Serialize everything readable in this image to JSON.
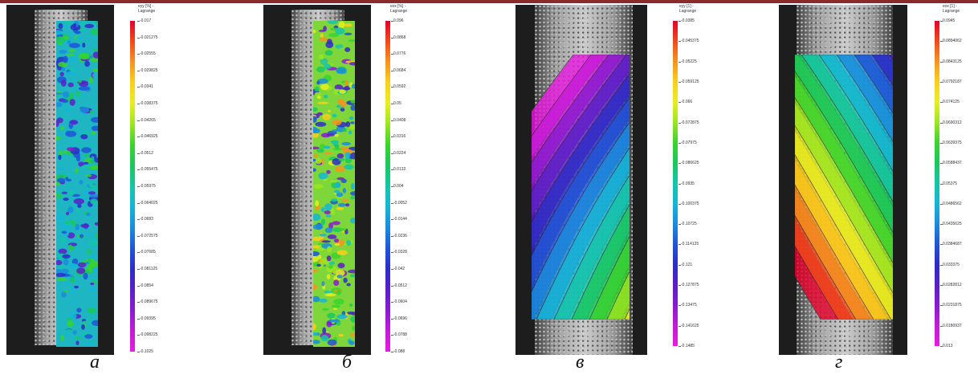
{
  "panels": [
    {
      "id": "a",
      "caption": "а",
      "cb_title": "eyy [%] -\nLagrange",
      "labels": [
        "-0.017",
        "-0.021275",
        "-0.02555",
        "-0.029825",
        "-0.0341",
        "-0.038375",
        "-0.04265",
        "-0.046925",
        "-0.0512",
        "-0.055475",
        "-0.05975",
        "-0.064025",
        "-0.0683",
        "-0.072575",
        "-0.07685",
        "-0.081125",
        "-0.0854",
        "-0.089675",
        "-0.09395",
        "-0.098225",
        "-0.1025"
      ],
      "type": "speckle"
    },
    {
      "id": "b",
      "caption": "б",
      "cb_title": "exx [%] -\nLagrange",
      "labels": [
        "0.096",
        "0.0868",
        "0.0776",
        "0.0684",
        "0.0592",
        "0.05",
        "0.0408",
        "0.0316",
        "0.0224",
        "0.0132",
        "0.004",
        "-0.0052",
        "-0.0144",
        "-0.0236",
        "-0.0328",
        "-0.042",
        "-0.0512",
        "-0.0604",
        "-0.0696",
        "-0.0788",
        "-0.088"
      ],
      "type": "speckle"
    },
    {
      "id": "v",
      "caption": "в",
      "cb_title": "eyy [1] -\nLagrange",
      "labels": [
        "-0.0385",
        "-0.045375",
        "-0.05225",
        "-0.059125",
        "-0.066",
        "-0.072875",
        "-0.07975",
        "-0.086625",
        "-0.0935",
        "-0.100375",
        "-0.10725",
        "-0.114125",
        "-0.121",
        "-0.127875",
        "-0.13475",
        "-0.141625",
        "-0.1485"
      ],
      "type": "bands-eyy"
    },
    {
      "id": "g",
      "caption": "г",
      "cb_title": "exx [1] -\nLagrange",
      "labels": [
        "0.0945",
        "0.0894062",
        "0.0843125",
        "0.0792187",
        "0.074125",
        "0.0690312",
        "0.0639375",
        "0.0588437",
        "0.05375",
        "0.0486562",
        "0.0435625",
        "0.0384687",
        "0.033375",
        "0.0282812",
        "0.0231875",
        "0.0180937",
        "0.013"
      ],
      "type": "bands-exx"
    }
  ],
  "colors": {
    "scale": [
      "#e8002a",
      "#f04a1a",
      "#f7931e",
      "#fbd01a",
      "#e6ef1f",
      "#9be61f",
      "#38d42c",
      "#19c85e",
      "#14c6a8",
      "#14b6d6",
      "#1a8cde",
      "#1f55d8",
      "#2c2cc8",
      "#5a1fc8",
      "#8a1ad0",
      "#c41ad8",
      "#e81ae0"
    ]
  }
}
